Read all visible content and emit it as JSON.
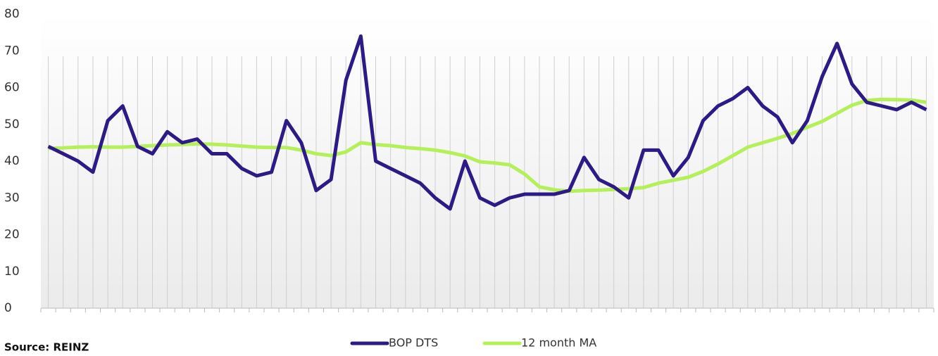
{
  "chart_data": {
    "type": "line",
    "categories": [
      null,
      null,
      null,
      null,
      null,
      null,
      null,
      null,
      null,
      null,
      null,
      null,
      null,
      null,
      null,
      null,
      null,
      null,
      null,
      null,
      null,
      null,
      null,
      null,
      null,
      null,
      null,
      null,
      null,
      null,
      null,
      null,
      null,
      null,
      null,
      null,
      null,
      null,
      null,
      null,
      null,
      null,
      null,
      null,
      null,
      null,
      null,
      null,
      null,
      null,
      null,
      null,
      null,
      null,
      null,
      null,
      null,
      null,
      null,
      null
    ],
    "series": [
      {
        "name": "BOP DTS",
        "color": "#2e1a87",
        "values": [
          44,
          42,
          40,
          37,
          51,
          55,
          44,
          42,
          48,
          45,
          46,
          42,
          42,
          38,
          36,
          37,
          51,
          45,
          32,
          35,
          62,
          74,
          40,
          38,
          36,
          34,
          30,
          27,
          40,
          30,
          28,
          30,
          31,
          31,
          31,
          32,
          41,
          35,
          33,
          30,
          43,
          43,
          36,
          41,
          51,
          55,
          57,
          60,
          55,
          52,
          45,
          51,
          63,
          72,
          61,
          56,
          55,
          54,
          56,
          54
        ]
      },
      {
        "name": "12 month MA",
        "color": "#b5ef5a",
        "values": [
          43.5,
          43.6,
          43.8,
          43.9,
          43.8,
          43.8,
          44,
          44.2,
          44.4,
          44.5,
          44.7,
          44.6,
          44.4,
          44.1,
          43.8,
          43.7,
          43.7,
          43,
          42,
          41.5,
          42.5,
          45,
          44.5,
          44.2,
          43.7,
          43.4,
          43,
          42.3,
          41.4,
          39.8,
          39.5,
          39,
          36.5,
          33,
          32.2,
          31.8,
          32,
          32.1,
          32.3,
          32.5,
          32.8,
          34,
          34.8,
          35.6,
          37.2,
          39.2,
          41.5,
          43.8,
          45,
          46.2,
          47.5,
          49.2,
          50.8,
          53,
          55.2,
          56.5,
          56.8,
          56.7,
          56.6,
          56
        ]
      }
    ],
    "ylim": [
      0,
      80
    ],
    "yticks": [
      0,
      10,
      20,
      30,
      40,
      50,
      60,
      70,
      80
    ],
    "grid": true,
    "legend": "bottom",
    "source": "Source: REINZ"
  }
}
